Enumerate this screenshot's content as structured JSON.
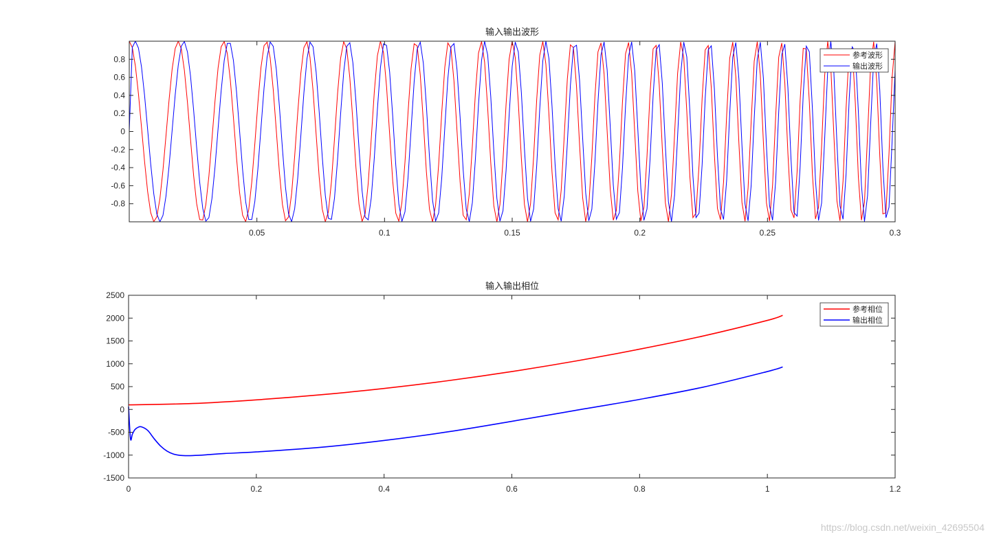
{
  "watermark": "https://blog.csdn.net/weixin_42695504",
  "chart_data": [
    {
      "type": "line",
      "title": "输入输出波形",
      "xlabel": "",
      "ylabel": "",
      "xlim": [
        0.0,
        0.3
      ],
      "ylim": [
        -1.0,
        1.0
      ],
      "xticks": [
        0.05,
        0.1,
        0.15,
        0.2,
        0.25,
        0.3
      ],
      "xtick_labels": [
        "0.05",
        "0.1",
        "0.15",
        "0.2",
        "0.25",
        "0.3"
      ],
      "yticks": [
        0.8,
        0.6,
        0.4,
        0.2,
        0,
        -0.2,
        -0.4,
        -0.6,
        -0.8
      ],
      "ytick_labels": [
        "0.8",
        "0.6",
        "0.4",
        "0.2",
        "0",
        "-0.2",
        "-0.4",
        "-0.6",
        "-0.8"
      ],
      "grid": false,
      "legend_position": "top-right",
      "series": [
        {
          "name": "参考波形",
          "color": "#ff0000",
          "waveform": "cos",
          "amplitude": 1.0,
          "chirp_f0_hz": 50,
          "chirp_rate_hz_per_s": 222,
          "sample_interval_s": 0.0012
        },
        {
          "name": "输出波形",
          "color": "#0000ff",
          "waveform": "cos",
          "amplitude": 1.0,
          "start_value": 0,
          "start_hold_s": 0.0012,
          "chirp_f0_hz": 50,
          "chirp_rate_hz_per_s": 222,
          "phase_lag_rad": 0.75,
          "sample_interval_s": 0.0012
        }
      ]
    },
    {
      "type": "line",
      "title": "输入输出相位",
      "xlabel": "",
      "ylabel": "",
      "xlim": [
        0,
        1.2
      ],
      "ylim": [
        -1500,
        2500
      ],
      "xticks": [
        0,
        0.2,
        0.4,
        0.6,
        0.8,
        1,
        1.2
      ],
      "xtick_labels": [
        "0",
        "0.2",
        "0.4",
        "0.6",
        "0.8",
        "1",
        "1.2"
      ],
      "yticks": [
        2500,
        2000,
        1500,
        1000,
        500,
        0,
        -500,
        -1000,
        -1500
      ],
      "ytick_labels": [
        "2500",
        "2000",
        "1500",
        "1000",
        "500",
        "0",
        "-500",
        "-1000",
        "-1500"
      ],
      "grid": false,
      "legend_position": "top-right",
      "series": [
        {
          "name": "参考相位",
          "color": "#ff0000",
          "x": [
            0,
            0.1,
            0.2,
            0.3,
            0.4,
            0.5,
            0.6,
            0.7,
            0.8,
            0.9,
            1.0,
            1.024
          ],
          "y": [
            100,
            130,
            210,
            320,
            460,
            630,
            830,
            1060,
            1320,
            1610,
            1950,
            2060
          ]
        },
        {
          "name": "输出相位",
          "color": "#0000ff",
          "x": [
            0,
            0.003,
            0.006,
            0.01,
            0.015,
            0.02,
            0.03,
            0.04,
            0.05,
            0.06,
            0.07,
            0.08,
            0.09,
            0.1,
            0.12,
            0.15,
            0.2,
            0.3,
            0.4,
            0.5,
            0.6,
            0.7,
            0.8,
            0.9,
            1.0,
            1.024
          ],
          "y": [
            60,
            -640,
            -540,
            -440,
            -390,
            -380,
            -460,
            -640,
            -800,
            -910,
            -975,
            -1005,
            -1012,
            -1010,
            -995,
            -965,
            -930,
            -830,
            -680,
            -490,
            -260,
            -20,
            220,
            490,
            830,
            930
          ]
        }
      ]
    }
  ]
}
